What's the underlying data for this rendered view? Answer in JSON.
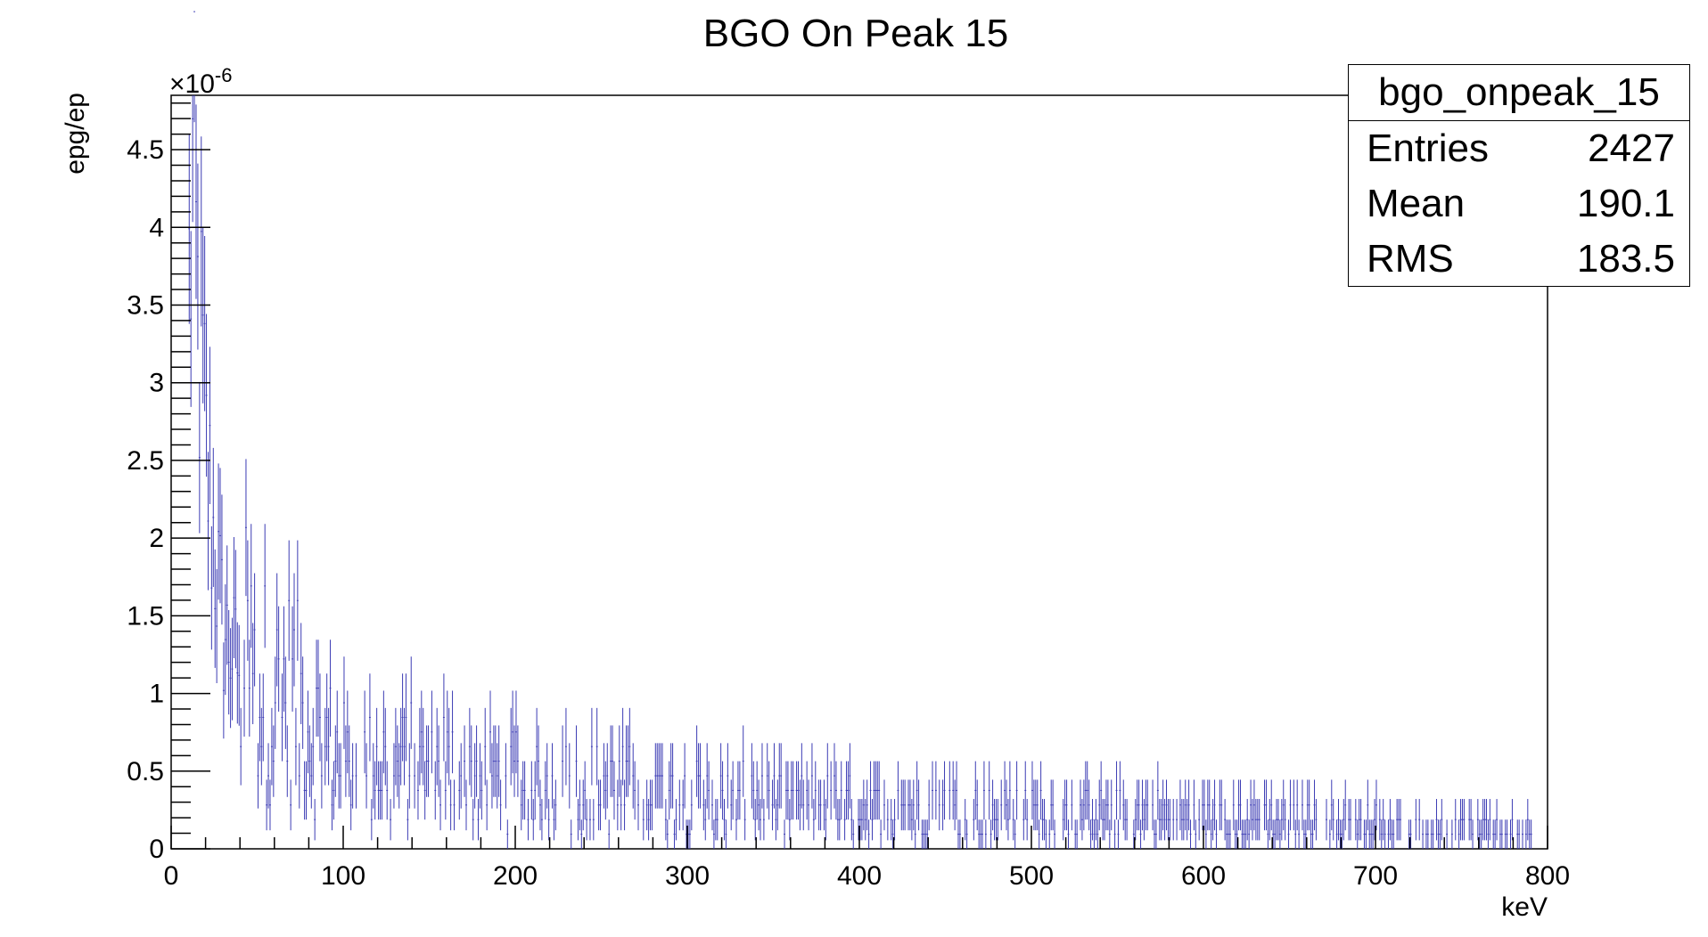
{
  "chart_data": {
    "type": "histogram",
    "title": "BGO On Peak 15",
    "xlabel": "keV",
    "ylabel": "epg/ep",
    "y_exponent_label": "×10",
    "y_exponent_power": "-6",
    "xlim": [
      0,
      800
    ],
    "ylim": [
      0,
      4.85
    ],
    "x_ticks": [
      0,
      100,
      200,
      300,
      400,
      500,
      600,
      700,
      800
    ],
    "y_ticks": [
      0,
      0.5,
      1,
      1.5,
      2,
      2.5,
      3,
      3.5,
      4,
      4.5
    ],
    "y_tick_labels": [
      "0",
      "0.5",
      "1",
      "1.5",
      "2",
      "2.5",
      "3",
      "3.5",
      "4",
      "4.5"
    ],
    "bin_width": 1,
    "series_color": "#3c3cb4",
    "grid": false,
    "error_bars": true,
    "envelope_points": [
      [
        10,
        3.6
      ],
      [
        12,
        4.3
      ],
      [
        15,
        3.4
      ],
      [
        18,
        3.0
      ],
      [
        20,
        2.5
      ],
      [
        25,
        1.9
      ],
      [
        30,
        1.4
      ],
      [
        40,
        1.15
      ],
      [
        50,
        0.95
      ],
      [
        60,
        0.85
      ],
      [
        70,
        0.9
      ],
      [
        80,
        0.75
      ],
      [
        90,
        0.6
      ],
      [
        100,
        0.5
      ],
      [
        120,
        0.5
      ],
      [
        150,
        0.48
      ],
      [
        180,
        0.42
      ],
      [
        200,
        0.38
      ],
      [
        250,
        0.35
      ],
      [
        300,
        0.3
      ],
      [
        350,
        0.26
      ],
      [
        400,
        0.24
      ],
      [
        450,
        0.23
      ],
      [
        500,
        0.22
      ],
      [
        550,
        0.2
      ],
      [
        600,
        0.18
      ],
      [
        650,
        0.16
      ],
      [
        700,
        0.13
      ],
      [
        750,
        0.12
      ],
      [
        790,
        0.1
      ]
    ],
    "data_range": [
      10,
      790
    ]
  },
  "stats_box": {
    "name": "bgo_onpeak_15",
    "entries_label": "Entries",
    "entries_value": "2427",
    "mean_label": "Mean",
    "mean_value": "190.1",
    "rms_label": "RMS",
    "rms_value": "183.5"
  }
}
